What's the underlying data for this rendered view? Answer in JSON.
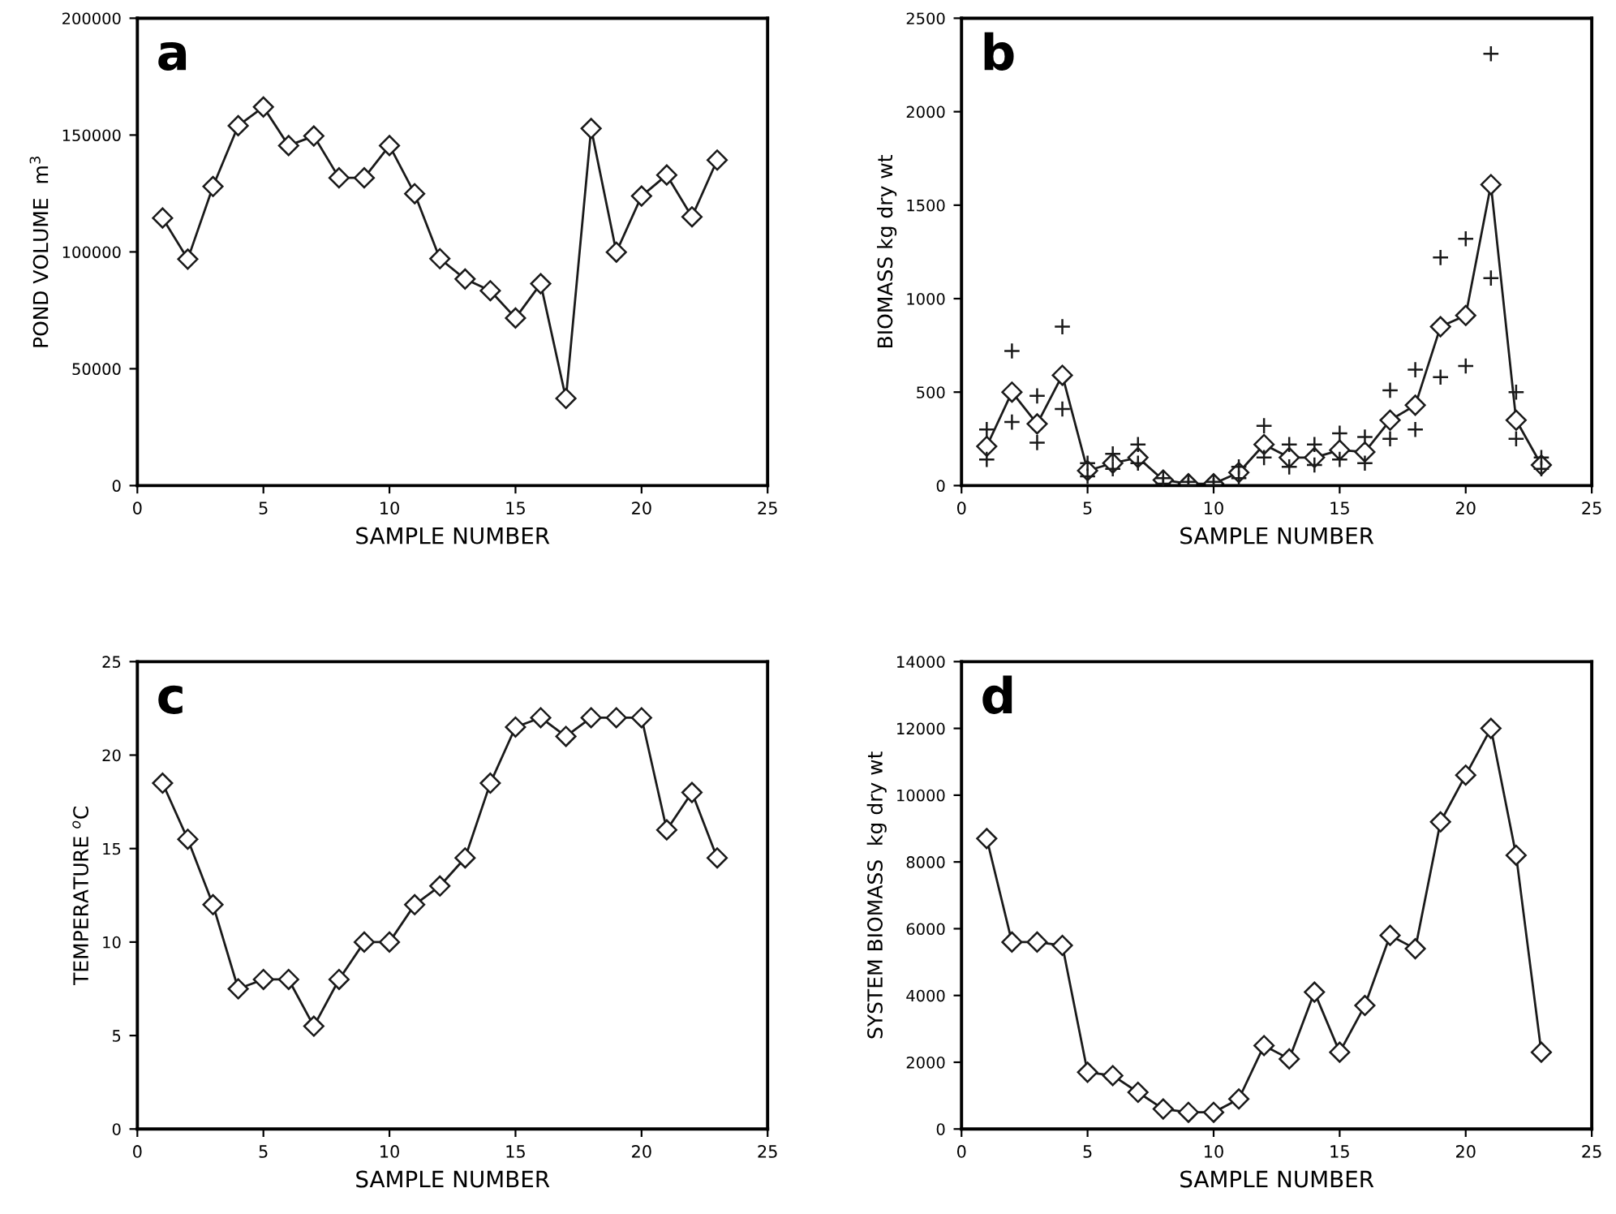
{
  "chart_data": [
    {
      "type": "line",
      "annotations": [
        "a"
      ],
      "xlabel": "SAMPLE NUMBER",
      "ylabel": "POND VOLUME  m$^{3}$",
      "x": [
        1,
        2,
        3,
        4,
        5,
        6,
        7,
        8,
        9,
        10,
        11,
        12,
        13,
        14,
        15,
        16,
        17,
        18,
        19,
        20,
        21,
        22,
        23
      ],
      "series": [
        {
          "color": "#1a1a1a",
          "marker": "diamond",
          "values": [
            114500,
            96900,
            128000,
            154000,
            162000,
            145500,
            149600,
            131700,
            131700,
            145500,
            124900,
            97100,
            88400,
            83400,
            71700,
            86400,
            37300,
            152800,
            99900,
            123900,
            132900,
            115000,
            139300
          ]
        }
      ],
      "xlim": [
        0,
        25
      ],
      "xticks": [
        0,
        5,
        10,
        15,
        20,
        25
      ],
      "ylim": [
        0,
        200000
      ],
      "yticks": [
        0,
        50000,
        100000,
        150000,
        200000
      ],
      "grid": false
    },
    {
      "type": "line",
      "annotations": [
        "b"
      ],
      "xlabel": "SAMPLE NUMBER",
      "ylabel": "BIOMASS kg dry wt",
      "x": [
        1,
        2,
        3,
        4,
        5,
        6,
        7,
        8,
        9,
        10,
        11,
        12,
        13,
        14,
        15,
        16,
        17,
        18,
        19,
        20,
        21,
        22,
        23
      ],
      "series": [
        {
          "color": "#1a1a1a",
          "marker": "diamond",
          "values": [
            210,
            500,
            330,
            590,
            80,
            120,
            150,
            30,
            10,
            10,
            70,
            220,
            150,
            150,
            190,
            180,
            350,
            430,
            850,
            910,
            1610,
            350,
            110
          ]
        },
        {
          "type": "scatter",
          "color": "#1a1a1a",
          "marker": "cross",
          "values": [
            300,
            720,
            480,
            850,
            120,
            170,
            220,
            40,
            20,
            20,
            100,
            320,
            220,
            220,
            280,
            260,
            510,
            620,
            1220,
            1320,
            2310,
            500,
            150
          ]
        },
        {
          "type": "scatter",
          "color": "#1a1a1a",
          "marker": "cross",
          "values": [
            140,
            340,
            230,
            410,
            50,
            90,
            120,
            10,
            0,
            0,
            40,
            150,
            100,
            110,
            140,
            120,
            250,
            300,
            580,
            640,
            1110,
            250,
            90
          ]
        }
      ],
      "xlim": [
        0,
        25
      ],
      "xticks": [
        0,
        5,
        10,
        15,
        20,
        25
      ],
      "ylim": [
        0,
        2500
      ],
      "yticks": [
        0,
        500,
        1000,
        1500,
        2000,
        2500
      ],
      "grid": false
    },
    {
      "type": "line",
      "annotations": [
        "c"
      ],
      "xlabel": "SAMPLE NUMBER",
      "ylabel": "TEMPERATURE $^{o}$C",
      "x": [
        1,
        2,
        3,
        4,
        5,
        6,
        7,
        8,
        9,
        10,
        11,
        12,
        13,
        14,
        15,
        16,
        17,
        18,
        19,
        20,
        21,
        22,
        23
      ],
      "series": [
        {
          "color": "#1a1a1a",
          "marker": "diamond",
          "values": [
            18.5,
            15.5,
            12,
            7.5,
            8,
            8,
            5.5,
            8,
            10,
            10,
            12,
            13,
            14.5,
            18.5,
            21.5,
            22,
            21,
            22,
            22,
            22,
            16,
            18,
            14.5
          ]
        }
      ],
      "xlim": [
        0,
        25
      ],
      "xticks": [
        0,
        5,
        10,
        15,
        20,
        25
      ],
      "ylim": [
        0,
        25
      ],
      "yticks": [
        0,
        5,
        10,
        15,
        20,
        25
      ],
      "grid": false
    },
    {
      "type": "line",
      "annotations": [
        "d"
      ],
      "xlabel": "SAMPLE NUMBER",
      "ylabel": "SYSTEM BIOMASS  kg dry wt",
      "x": [
        1,
        2,
        3,
        4,
        5,
        6,
        7,
        8,
        9,
        10,
        11,
        12,
        13,
        14,
        15,
        16,
        17,
        18,
        19,
        20,
        21,
        22,
        23
      ],
      "series": [
        {
          "color": "#1a1a1a",
          "marker": "diamond",
          "values": [
            8700,
            5600,
            5600,
            5500,
            1700,
            1600,
            1100,
            600,
            500,
            500,
            900,
            2500,
            2100,
            4100,
            2300,
            3700,
            5800,
            5400,
            9200,
            10600,
            12000,
            8200,
            2300
          ]
        }
      ],
      "xlim": [
        0,
        25
      ],
      "xticks": [
        0,
        5,
        10,
        15,
        20,
        25
      ],
      "ylim": [
        0,
        14000
      ],
      "yticks": [
        0,
        2000,
        4000,
        6000,
        8000,
        10000,
        12000,
        14000
      ],
      "grid": false
    }
  ]
}
